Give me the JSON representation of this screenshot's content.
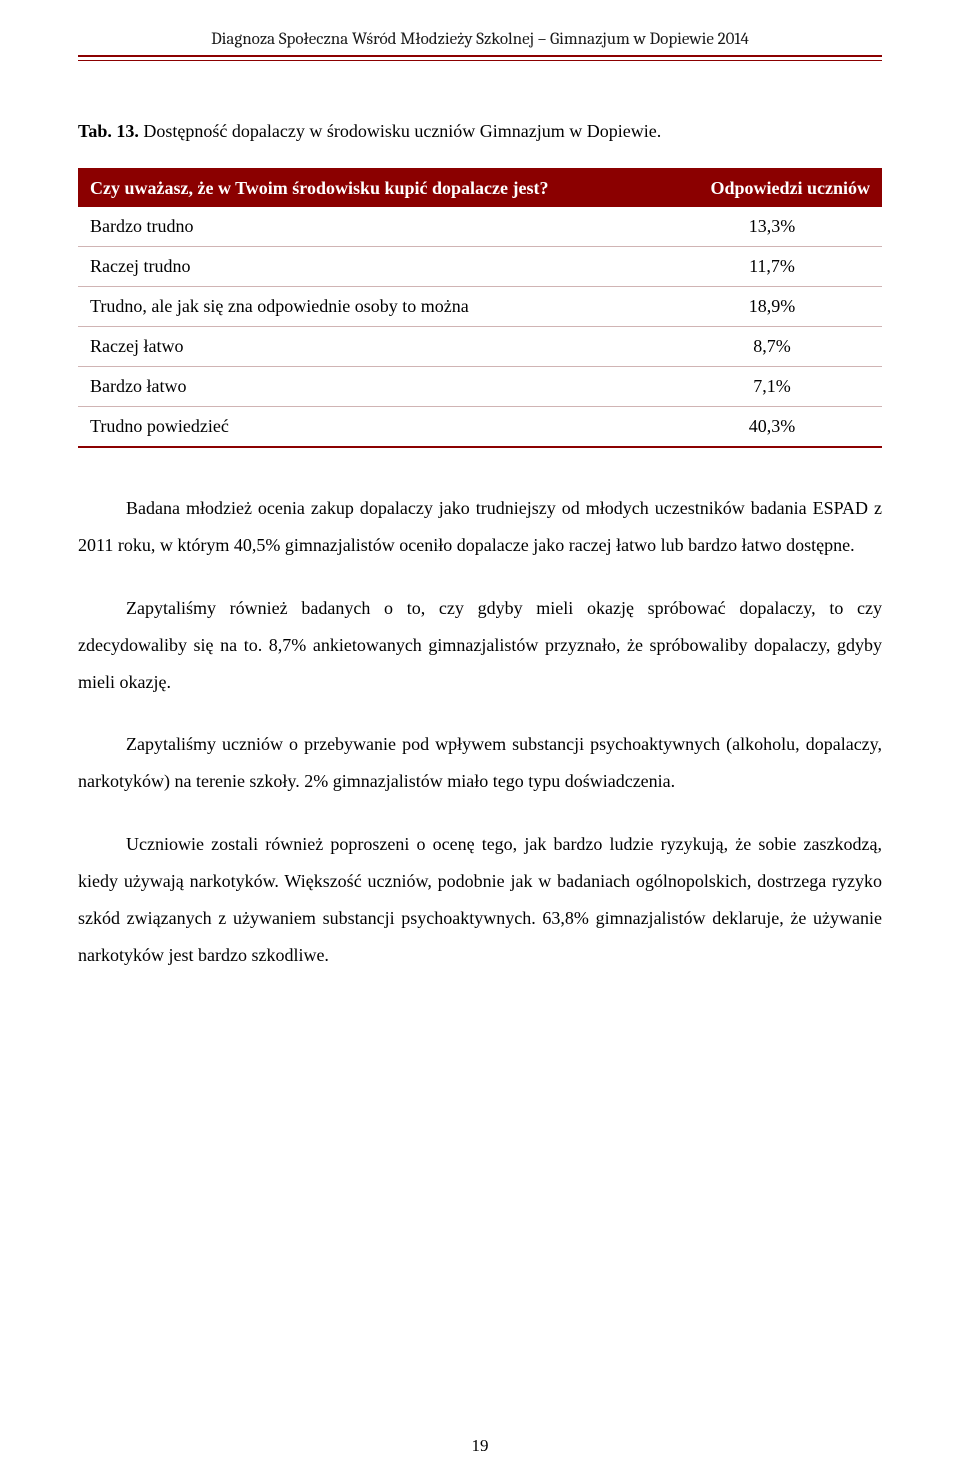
{
  "header": {
    "title": "Diagnoza Społeczna Wśród Młodzieży Szkolnej – Gimnazjum w Dopiewie 2014"
  },
  "table": {
    "caption_label": "Tab. 13.",
    "caption_text": "Dostępność dopalaczy w środowisku uczniów Gimnazjum w Dopiewie.",
    "question_header": "Czy uważasz, że w Twoim środowisku kupić dopalacze jest?",
    "answers_header": "Odpowiedzi uczniów",
    "header_bg": "#8b0000",
    "header_text_color": "#ffffff",
    "rows": [
      {
        "label": "Bardzo trudno",
        "value": "13,3%"
      },
      {
        "label": "Raczej trudno",
        "value": "11,7%"
      },
      {
        "label": "Trudno, ale jak się zna odpowiednie osoby to można",
        "value": "18,9%"
      },
      {
        "label": "Raczej łatwo",
        "value": "8,7%"
      },
      {
        "label": "Bardzo łatwo",
        "value": "7,1%"
      },
      {
        "label": "Trudno powiedzieć",
        "value": "40,3%"
      }
    ]
  },
  "paragraphs": {
    "p1": "Badana młodzież ocenia zakup dopalaczy jako trudniejszy od młodych uczestników badania ESPAD z 2011 roku, w którym 40,5% gimnazjalistów oceniło dopalacze jako raczej łatwo lub bardzo łatwo dostępne.",
    "p2": "Zapytaliśmy również badanych o to, czy gdyby mieli okazję spróbować dopalaczy, to czy zdecydowaliby się na to. 8,7% ankietowanych gimnazjalistów przyznało, że spróbowaliby dopalaczy, gdyby mieli okazję.",
    "p3": "Zapytaliśmy uczniów o przebywanie pod wpływem substancji psychoaktywnych (alkoholu, dopalaczy, narkotyków) na terenie szkoły. 2% gimnazjalistów miało tego typu doświadczenia.",
    "p4": "Uczniowie zostali również poproszeni o ocenę tego, jak bardzo ludzie ryzykują, że sobie zaszkodzą, kiedy używają narkotyków. Większość uczniów, podobnie jak w badaniach ogólnopolskich, dostrzega ryzyko szkód związanych z używaniem substancji psychoaktywnych. 63,8% gimnazjalistów deklaruje, że używanie narkotyków jest bardzo szkodliwe."
  },
  "page_number": "19"
}
